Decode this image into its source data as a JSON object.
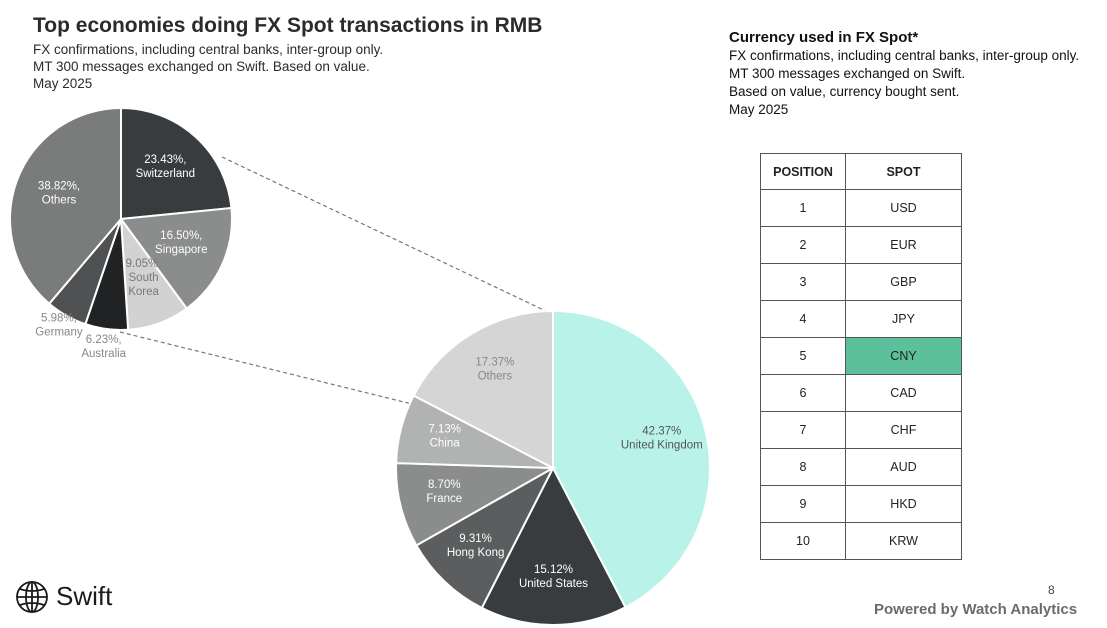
{
  "left": {
    "title": "Top economies doing FX Spot transactions in RMB",
    "subtitle_lines": [
      "FX confirmations, including central banks, inter-group only.",
      "MT 300 messages exchanged on Swift. Based on value.",
      "May 2025"
    ]
  },
  "right": {
    "title": "Currency used in FX Spot*",
    "subtitle_lines": [
      "FX confirmations, including central banks, inter-group only.",
      "MT 300 messages exchanged on Swift.",
      "Based on value, currency bought sent.",
      "May 2025"
    ]
  },
  "table": {
    "headers": [
      "POSITION",
      "SPOT"
    ],
    "rows": [
      {
        "pos": "1",
        "cur": "USD"
      },
      {
        "pos": "2",
        "cur": "EUR"
      },
      {
        "pos": "3",
        "cur": "GBP"
      },
      {
        "pos": "4",
        "cur": "JPY"
      },
      {
        "pos": "5",
        "cur": "CNY"
      },
      {
        "pos": "6",
        "cur": "CAD"
      },
      {
        "pos": "7",
        "cur": "CHF"
      },
      {
        "pos": "8",
        "cur": "AUD"
      },
      {
        "pos": "9",
        "cur": "HKD"
      },
      {
        "pos": "10",
        "cur": "KRW"
      }
    ],
    "highlight_row": "5",
    "highlight_color": "#5cc09c"
  },
  "chart_data": [
    {
      "type": "pie",
      "title": "",
      "note": "breakdown of Others slice of main pie",
      "slices": [
        {
          "label": "Switzerland",
          "value": 23.43,
          "pct_text": "23.43%,",
          "color": "#383c3e",
          "text_color": "#ffffff"
        },
        {
          "label": "Singapore",
          "value": 16.5,
          "pct_text": "16.50%,",
          "color": "#8b8c8c",
          "text_color": "#ffffff"
        },
        {
          "label": "South Korea",
          "value": 9.05,
          "pct_text": "9.05%,",
          "color": "#d2d2d2",
          "text_color": "#777777",
          "label_lines": [
            "South",
            "Korea"
          ]
        },
        {
          "label": "Australia",
          "value": 6.23,
          "pct_text": "6.23%,",
          "color": "#202224",
          "text_color": "#888888"
        },
        {
          "label": "Germany",
          "value": 5.98,
          "pct_text": "5.98%,",
          "color": "#4f5152",
          "text_color": "#888888"
        },
        {
          "label": "Others",
          "value": 38.82,
          "pct_text": "38.82%,",
          "color": "#7a7b7b",
          "text_color": "#ffffff"
        }
      ]
    },
    {
      "type": "pie",
      "title": "",
      "slices": [
        {
          "label": "United Kingdom",
          "value": 42.37,
          "pct_text": "42.37%",
          "color": "#b9f2e8",
          "text_color": "#555555"
        },
        {
          "label": "United States",
          "value": 15.12,
          "pct_text": "15.12%",
          "color": "#383c3e",
          "text_color": "#ffffff"
        },
        {
          "label": "Hong Kong",
          "value": 9.31,
          "pct_text": "9.31%",
          "color": "#5b5d5e",
          "text_color": "#ffffff"
        },
        {
          "label": "France",
          "value": 8.7,
          "pct_text": "8.70%",
          "color": "#8b8c8c",
          "text_color": "#ffffff"
        },
        {
          "label": "China",
          "value": 7.13,
          "pct_text": "7.13%",
          "color": "#b1b2b2",
          "text_color": "#ffffff"
        },
        {
          "label": "Others",
          "value": 17.37,
          "pct_text": "17.37%",
          "color": "#d5d5d5",
          "text_color": "#888888"
        }
      ]
    }
  ],
  "footer": {
    "logo_text": "Swift",
    "page_number": "8",
    "powered_by": "Powered by Watch Analytics"
  }
}
